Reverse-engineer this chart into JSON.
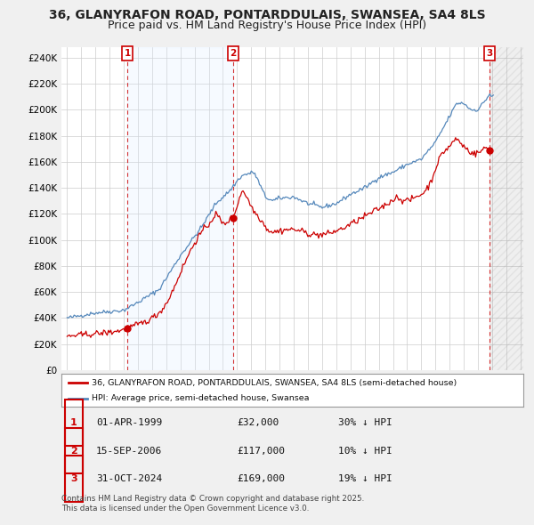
{
  "title": "36, GLANYRAFON ROAD, PONTARDDULAIS, SWANSEA, SA4 8LS",
  "subtitle": "Price paid vs. HM Land Registry's House Price Index (HPI)",
  "title_fontsize": 10,
  "subtitle_fontsize": 9,
  "ylabel_ticks": [
    "£0",
    "£20K",
    "£40K",
    "£60K",
    "£80K",
    "£100K",
    "£120K",
    "£140K",
    "£160K",
    "£180K",
    "£200K",
    "£220K",
    "£240K"
  ],
  "ytick_vals": [
    0,
    20000,
    40000,
    60000,
    80000,
    100000,
    120000,
    140000,
    160000,
    180000,
    200000,
    220000,
    240000
  ],
  "ylim": [
    0,
    248000
  ],
  "xlim_start": 1994.6,
  "xlim_end": 2027.2,
  "sale_dates": [
    1999.25,
    2006.71,
    2024.83
  ],
  "sale_prices": [
    32000,
    117000,
    169000
  ],
  "sale_labels": [
    "1",
    "2",
    "3"
  ],
  "sale_vline_color": "#cc0000",
  "sale_marker_color": "#cc0000",
  "hpi_line_color": "#5588bb",
  "price_line_color": "#cc0000",
  "background_color": "#f0f0f0",
  "plot_background": "#ffffff",
  "shade_color": "#ddeeff",
  "hatch_color": "#cccccc",
  "grid_color": "#cccccc",
  "legend1_label": "36, GLANYRAFON ROAD, PONTARDDULAIS, SWANSEA, SA4 8LS (semi-detached house)",
  "legend2_label": "HPI: Average price, semi-detached house, Swansea",
  "table_data": [
    [
      "1",
      "01-APR-1999",
      "£32,000",
      "30% ↓ HPI"
    ],
    [
      "2",
      "15-SEP-2006",
      "£117,000",
      "10% ↓ HPI"
    ],
    [
      "3",
      "31-OCT-2024",
      "£169,000",
      "19% ↓ HPI"
    ]
  ],
  "footnote": "Contains HM Land Registry data © Crown copyright and database right 2025.\nThis data is licensed under the Open Government Licence v3.0."
}
